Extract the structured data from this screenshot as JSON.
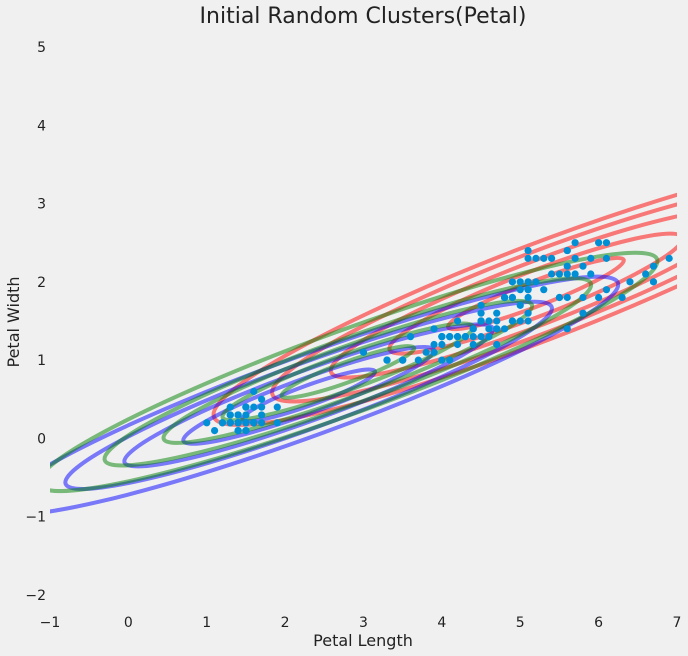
{
  "chart_data": {
    "type": "scatter",
    "title": "Initial Random Clusters(Petal)",
    "xlabel": "Petal Length",
    "ylabel": "Petal Width",
    "xlim": [
      -1,
      7
    ],
    "ylim": [
      -2.1,
      5.1
    ],
    "x_ticks": [
      "−1",
      "0",
      "1",
      "2",
      "3",
      "4",
      "5",
      "6",
      "7"
    ],
    "x_tick_values": [
      -1,
      0,
      1,
      2,
      3,
      4,
      5,
      6,
      7
    ],
    "y_ticks": [
      "−2",
      "−1",
      "0",
      "1",
      "2",
      "3",
      "4",
      "5"
    ],
    "y_tick_values": [
      -2,
      -1,
      0,
      1,
      2,
      3,
      4,
      5
    ],
    "grid": false,
    "point_color": "#008fd5",
    "points": [
      [
        1.4,
        0.2
      ],
      [
        1.4,
        0.2
      ],
      [
        1.3,
        0.2
      ],
      [
        1.5,
        0.2
      ],
      [
        1.4,
        0.2
      ],
      [
        1.7,
        0.4
      ],
      [
        1.4,
        0.3
      ],
      [
        1.5,
        0.2
      ],
      [
        1.4,
        0.2
      ],
      [
        1.5,
        0.1
      ],
      [
        1.5,
        0.2
      ],
      [
        1.6,
        0.2
      ],
      [
        1.4,
        0.1
      ],
      [
        1.1,
        0.1
      ],
      [
        1.2,
        0.2
      ],
      [
        1.5,
        0.4
      ],
      [
        1.3,
        0.4
      ],
      [
        1.4,
        0.3
      ],
      [
        1.7,
        0.3
      ],
      [
        1.5,
        0.3
      ],
      [
        1.7,
        0.2
      ],
      [
        1.5,
        0.4
      ],
      [
        1.0,
        0.2
      ],
      [
        1.7,
        0.5
      ],
      [
        1.9,
        0.2
      ],
      [
        1.6,
        0.2
      ],
      [
        1.6,
        0.4
      ],
      [
        1.5,
        0.2
      ],
      [
        1.4,
        0.2
      ],
      [
        1.6,
        0.2
      ],
      [
        1.6,
        0.2
      ],
      [
        1.5,
        0.4
      ],
      [
        1.5,
        0.1
      ],
      [
        1.4,
        0.2
      ],
      [
        1.5,
        0.2
      ],
      [
        1.2,
        0.2
      ],
      [
        1.3,
        0.2
      ],
      [
        1.4,
        0.1
      ],
      [
        1.3,
        0.2
      ],
      [
        1.5,
        0.2
      ],
      [
        1.3,
        0.3
      ],
      [
        1.3,
        0.3
      ],
      [
        1.3,
        0.2
      ],
      [
        1.6,
        0.6
      ],
      [
        1.9,
        0.4
      ],
      [
        1.4,
        0.3
      ],
      [
        1.6,
        0.2
      ],
      [
        1.4,
        0.2
      ],
      [
        1.5,
        0.2
      ],
      [
        1.4,
        0.2
      ],
      [
        4.7,
        1.4
      ],
      [
        4.5,
        1.5
      ],
      [
        4.9,
        1.5
      ],
      [
        4.0,
        1.3
      ],
      [
        4.6,
        1.5
      ],
      [
        4.5,
        1.3
      ],
      [
        4.7,
        1.6
      ],
      [
        3.3,
        1.0
      ],
      [
        4.6,
        1.3
      ],
      [
        3.9,
        1.4
      ],
      [
        3.5,
        1.0
      ],
      [
        4.2,
        1.5
      ],
      [
        4.0,
        1.0
      ],
      [
        4.7,
        1.4
      ],
      [
        3.6,
        1.3
      ],
      [
        4.4,
        1.4
      ],
      [
        4.5,
        1.5
      ],
      [
        4.1,
        1.0
      ],
      [
        4.5,
        1.5
      ],
      [
        3.9,
        1.1
      ],
      [
        4.8,
        1.8
      ],
      [
        4.0,
        1.3
      ],
      [
        4.9,
        1.5
      ],
      [
        4.7,
        1.2
      ],
      [
        4.3,
        1.3
      ],
      [
        4.4,
        1.4
      ],
      [
        4.8,
        1.4
      ],
      [
        5.0,
        1.7
      ],
      [
        4.5,
        1.5
      ],
      [
        3.5,
        1.0
      ],
      [
        3.8,
        1.1
      ],
      [
        3.7,
        1.0
      ],
      [
        3.9,
        1.2
      ],
      [
        5.1,
        1.6
      ],
      [
        4.5,
        1.5
      ],
      [
        4.5,
        1.6
      ],
      [
        4.7,
        1.5
      ],
      [
        4.4,
        1.3
      ],
      [
        4.1,
        1.3
      ],
      [
        4.0,
        1.3
      ],
      [
        4.4,
        1.2
      ],
      [
        4.6,
        1.4
      ],
      [
        4.0,
        1.2
      ],
      [
        3.3,
        1.0
      ],
      [
        4.2,
        1.3
      ],
      [
        4.2,
        1.2
      ],
      [
        4.2,
        1.3
      ],
      [
        4.3,
        1.3
      ],
      [
        3.0,
        1.1
      ],
      [
        4.1,
        1.3
      ],
      [
        6.0,
        2.5
      ],
      [
        5.1,
        1.9
      ],
      [
        5.9,
        2.1
      ],
      [
        5.6,
        1.8
      ],
      [
        5.8,
        2.2
      ],
      [
        6.6,
        2.1
      ],
      [
        4.5,
        1.7
      ],
      [
        6.3,
        1.8
      ],
      [
        5.8,
        1.8
      ],
      [
        6.1,
        2.5
      ],
      [
        5.1,
        2.0
      ],
      [
        5.3,
        1.9
      ],
      [
        5.5,
        2.1
      ],
      [
        5.0,
        2.0
      ],
      [
        5.1,
        2.4
      ],
      [
        5.3,
        2.3
      ],
      [
        5.5,
        1.8
      ],
      [
        6.7,
        2.2
      ],
      [
        6.9,
        2.3
      ],
      [
        5.0,
        1.5
      ],
      [
        5.7,
        2.3
      ],
      [
        4.9,
        2.0
      ],
      [
        6.7,
        2.0
      ],
      [
        4.9,
        1.8
      ],
      [
        5.7,
        2.1
      ],
      [
        6.0,
        1.8
      ],
      [
        4.8,
        1.8
      ],
      [
        4.9,
        1.8
      ],
      [
        5.6,
        2.1
      ],
      [
        5.8,
        1.6
      ],
      [
        6.1,
        1.9
      ],
      [
        6.4,
        2.0
      ],
      [
        5.6,
        2.2
      ],
      [
        5.1,
        1.5
      ],
      [
        5.6,
        1.4
      ],
      [
        6.1,
        2.3
      ],
      [
        5.6,
        2.4
      ],
      [
        5.5,
        1.8
      ],
      [
        4.8,
        1.8
      ],
      [
        5.4,
        2.1
      ],
      [
        5.6,
        2.4
      ],
      [
        5.1,
        2.3
      ],
      [
        5.1,
        1.9
      ],
      [
        5.9,
        2.3
      ],
      [
        5.7,
        2.5
      ],
      [
        5.2,
        2.3
      ],
      [
        5.0,
        1.9
      ],
      [
        5.2,
        2.0
      ],
      [
        5.4,
        2.3
      ],
      [
        5.1,
        1.8
      ]
    ],
    "contour_sets": [
      {
        "color": "#ff0000",
        "center": [
          5.2,
          1.85
        ],
        "rx": [
          1.2,
          2.0,
          2.8,
          3.6,
          4.4
        ],
        "ry": [
          0.1,
          0.18,
          0.25,
          0.32,
          0.38
        ],
        "angle": 21
      },
      {
        "color": "#0000ff",
        "center": [
          2.3,
          0.55
        ],
        "rx": [
          0.9,
          1.7,
          2.5,
          3.3,
          4.2
        ],
        "ry": [
          0.08,
          0.14,
          0.2,
          0.26,
          0.32
        ],
        "angle": 20
      },
      {
        "color": "#008000",
        "center": [
          2.8,
          0.85
        ],
        "rx": [
          0.9,
          1.7,
          2.5,
          3.3,
          4.2
        ],
        "ry": [
          0.08,
          0.14,
          0.2,
          0.26,
          0.33
        ],
        "angle": 20
      }
    ]
  }
}
